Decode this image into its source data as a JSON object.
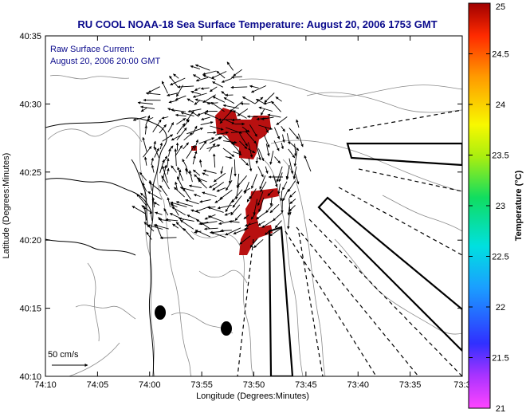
{
  "title": "RU COOL  NOAA-18  Sea Surface Temperature:  August 20, 2006 1753 GMT",
  "annotation": {
    "line1": "Raw Surface Current:",
    "line2": "August 20, 2006 20:00 GMT"
  },
  "scale_label": "50 cm/s",
  "x_axis": {
    "label": "Longitude (Degrees:Minutes)",
    "ticks": [
      "74:10",
      "74:05",
      "74:00",
      "73:55",
      "73:50",
      "73:45",
      "73:40",
      "73:35",
      "73:3"
    ]
  },
  "y_axis": {
    "label": "Latitude (Degrees:Minutes)",
    "ticks": [
      "40:35",
      "40:30",
      "40:25",
      "40:20",
      "40:15",
      "40:10"
    ]
  },
  "colorbar": {
    "label": "Temperature (°C)",
    "ticks": [
      "25",
      "24.5",
      "24",
      "23.5",
      "23",
      "22.5",
      "22",
      "21.5",
      "21"
    ],
    "range": [
      21,
      25
    ]
  },
  "colors": {
    "title": "#0a0a8c",
    "sst_patch": "#b81010",
    "contour": "#8a8a8a"
  },
  "chart_data": {
    "type": "map",
    "xlim": [
      "74:10",
      "73:30"
    ],
    "ylim": [
      "40:10",
      "40:35"
    ],
    "layers": [
      "coastline",
      "bathymetry contours",
      "surface current vectors",
      "sea surface temperature"
    ]
  }
}
